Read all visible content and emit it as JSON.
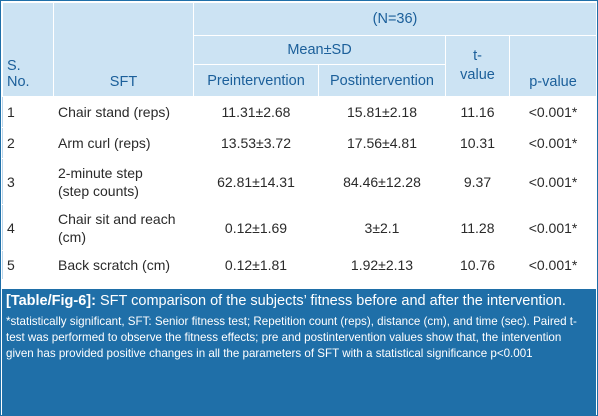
{
  "table": {
    "group_header": "(N=36)",
    "col_sno": "S.\nNo.",
    "col_sft": "SFT",
    "col_meansd": "Mean±SD",
    "col_pre": "Preintervention",
    "col_post": "Postintervention",
    "col_t": "t-\nvalue",
    "col_p": "p-value",
    "rows": [
      {
        "sno": "1",
        "sft": "Chair stand (reps)",
        "pre": "11.31±2.68",
        "post": "15.81±2.18",
        "t": "11.16",
        "p": "<0.001*"
      },
      {
        "sno": "2",
        "sft": "Arm curl (reps)",
        "pre": "13.53±3.72",
        "post": "17.56±4.81",
        "t": "10.31",
        "p": "<0.001*"
      },
      {
        "sno": "3",
        "sft": "2-minute step\n(step counts)",
        "pre": "62.81±14.31",
        "post": "84.46±12.28",
        "t": "9.37",
        "p": "<0.001*"
      },
      {
        "sno": "4",
        "sft": "Chair sit and reach\n(cm)",
        "pre": "0.12±1.69",
        "post": "3±2.1",
        "t": "11.28",
        "p": "<0.001*"
      },
      {
        "sno": "5",
        "sft": "Back scratch (cm)",
        "pre": "0.12±1.81",
        "post": "1.92±2.13",
        "t": "10.76",
        "p": "<0.001*"
      }
    ]
  },
  "caption": {
    "label": "[Table/Fig-6]:",
    "title": " SFT comparison of the subjects’ fitness before and after the intervention.",
    "note": "*statistically significant, SFT: Senior fitness test; Repetition count (reps), distance (cm), and time (sec). Paired t-test was performed to observe the fitness effects; pre and postintervention values show that, the intervention given has provided positive changes in all the parameters of SFT with a statistical significance p<0.001"
  },
  "colors": {
    "header_bg": "#cce3f3",
    "header_text": "#1b5f9a",
    "caption_bg": "#1f6fa8"
  }
}
